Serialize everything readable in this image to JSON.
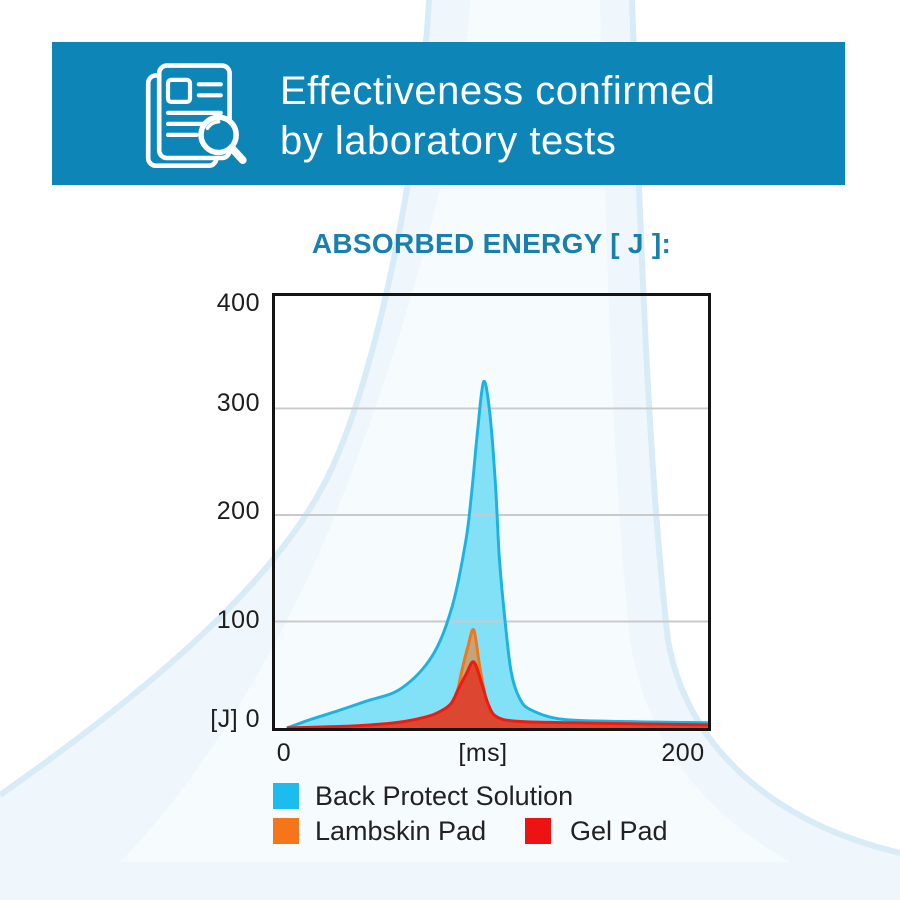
{
  "header": {
    "line1": "Effectiveness confirmed",
    "line2": "by laboratory tests",
    "bg_color": "#0D86B7",
    "icon": "document-search-icon"
  },
  "chart": {
    "title": "ABSORBED ENERGY [ J ]:",
    "title_color": "#1B7FAB",
    "y_ticks": [
      "400",
      "300",
      "200",
      "100"
    ],
    "y_zero_label": "[J] 0",
    "x_ticks": [
      "0",
      "[ms]",
      "200"
    ],
    "gridline_color": "#C9CACB",
    "axis_color": "#141414"
  },
  "legend": {
    "items": [
      {
        "label": "Back Protect Solution",
        "color": "#1CBCEE"
      },
      {
        "label": "Lambskin Pad",
        "color": "#F5761A"
      },
      {
        "label": "Gel Pad",
        "color": "#EE1313"
      }
    ]
  },
  "chart_data": {
    "type": "area",
    "title": "ABSORBED ENERGY [ J ]:",
    "xlabel": "[ms]",
    "ylabel": "[J]",
    "xlim": [
      0,
      214
    ],
    "ylim": [
      0,
      400
    ],
    "x_tick_values": [
      0,
      200
    ],
    "y_tick_values": [
      0,
      100,
      200,
      300,
      400
    ],
    "grid": "horizontal",
    "legend_position": "bottom",
    "series": [
      {
        "name": "Back Protect Solution",
        "stroke": "#1CB3E1",
        "fill": "#82E1F7",
        "points": [
          [
            0,
            0
          ],
          [
            12,
            8
          ],
          [
            24,
            15
          ],
          [
            40,
            25
          ],
          [
            58,
            37
          ],
          [
            74,
            68
          ],
          [
            84,
            114
          ],
          [
            91,
            176
          ],
          [
            94,
            222
          ],
          [
            97,
            280
          ],
          [
            100,
            325
          ],
          [
            103,
            298
          ],
          [
            106,
            230
          ],
          [
            108,
            160
          ],
          [
            111,
            99
          ],
          [
            114,
            53
          ],
          [
            118,
            29
          ],
          [
            124,
            17
          ],
          [
            141,
            8
          ],
          [
            175,
            6
          ],
          [
            214,
            5
          ]
        ]
      },
      {
        "name": "Lambskin Pad",
        "stroke": "#F5761A",
        "fill": "rgba(244,118,26,0.55)",
        "points": [
          [
            0,
            0
          ],
          [
            30,
            1
          ],
          [
            50,
            2
          ],
          [
            62,
            3
          ],
          [
            72,
            7
          ],
          [
            80,
            11
          ],
          [
            84,
            17
          ],
          [
            86,
            28
          ],
          [
            89,
            54
          ],
          [
            92,
            76
          ],
          [
            95,
            92
          ],
          [
            98,
            58
          ],
          [
            101,
            29
          ],
          [
            104,
            12
          ],
          [
            108,
            5
          ],
          [
            120,
            3
          ],
          [
            150,
            2
          ],
          [
            214,
            1
          ]
        ]
      },
      {
        "name": "Gel Pad",
        "stroke": "#EE1B10",
        "fill": "#DB4731",
        "points": [
          [
            0,
            0
          ],
          [
            35,
            2
          ],
          [
            55,
            5
          ],
          [
            65,
            8
          ],
          [
            75,
            13
          ],
          [
            83,
            22
          ],
          [
            87,
            36
          ],
          [
            91,
            50
          ],
          [
            95,
            62
          ],
          [
            99,
            42
          ],
          [
            102,
            24
          ],
          [
            105,
            13
          ],
          [
            110,
            8
          ],
          [
            120,
            6
          ],
          [
            141,
            5
          ],
          [
            175,
            4
          ],
          [
            214,
            3
          ]
        ]
      }
    ]
  }
}
